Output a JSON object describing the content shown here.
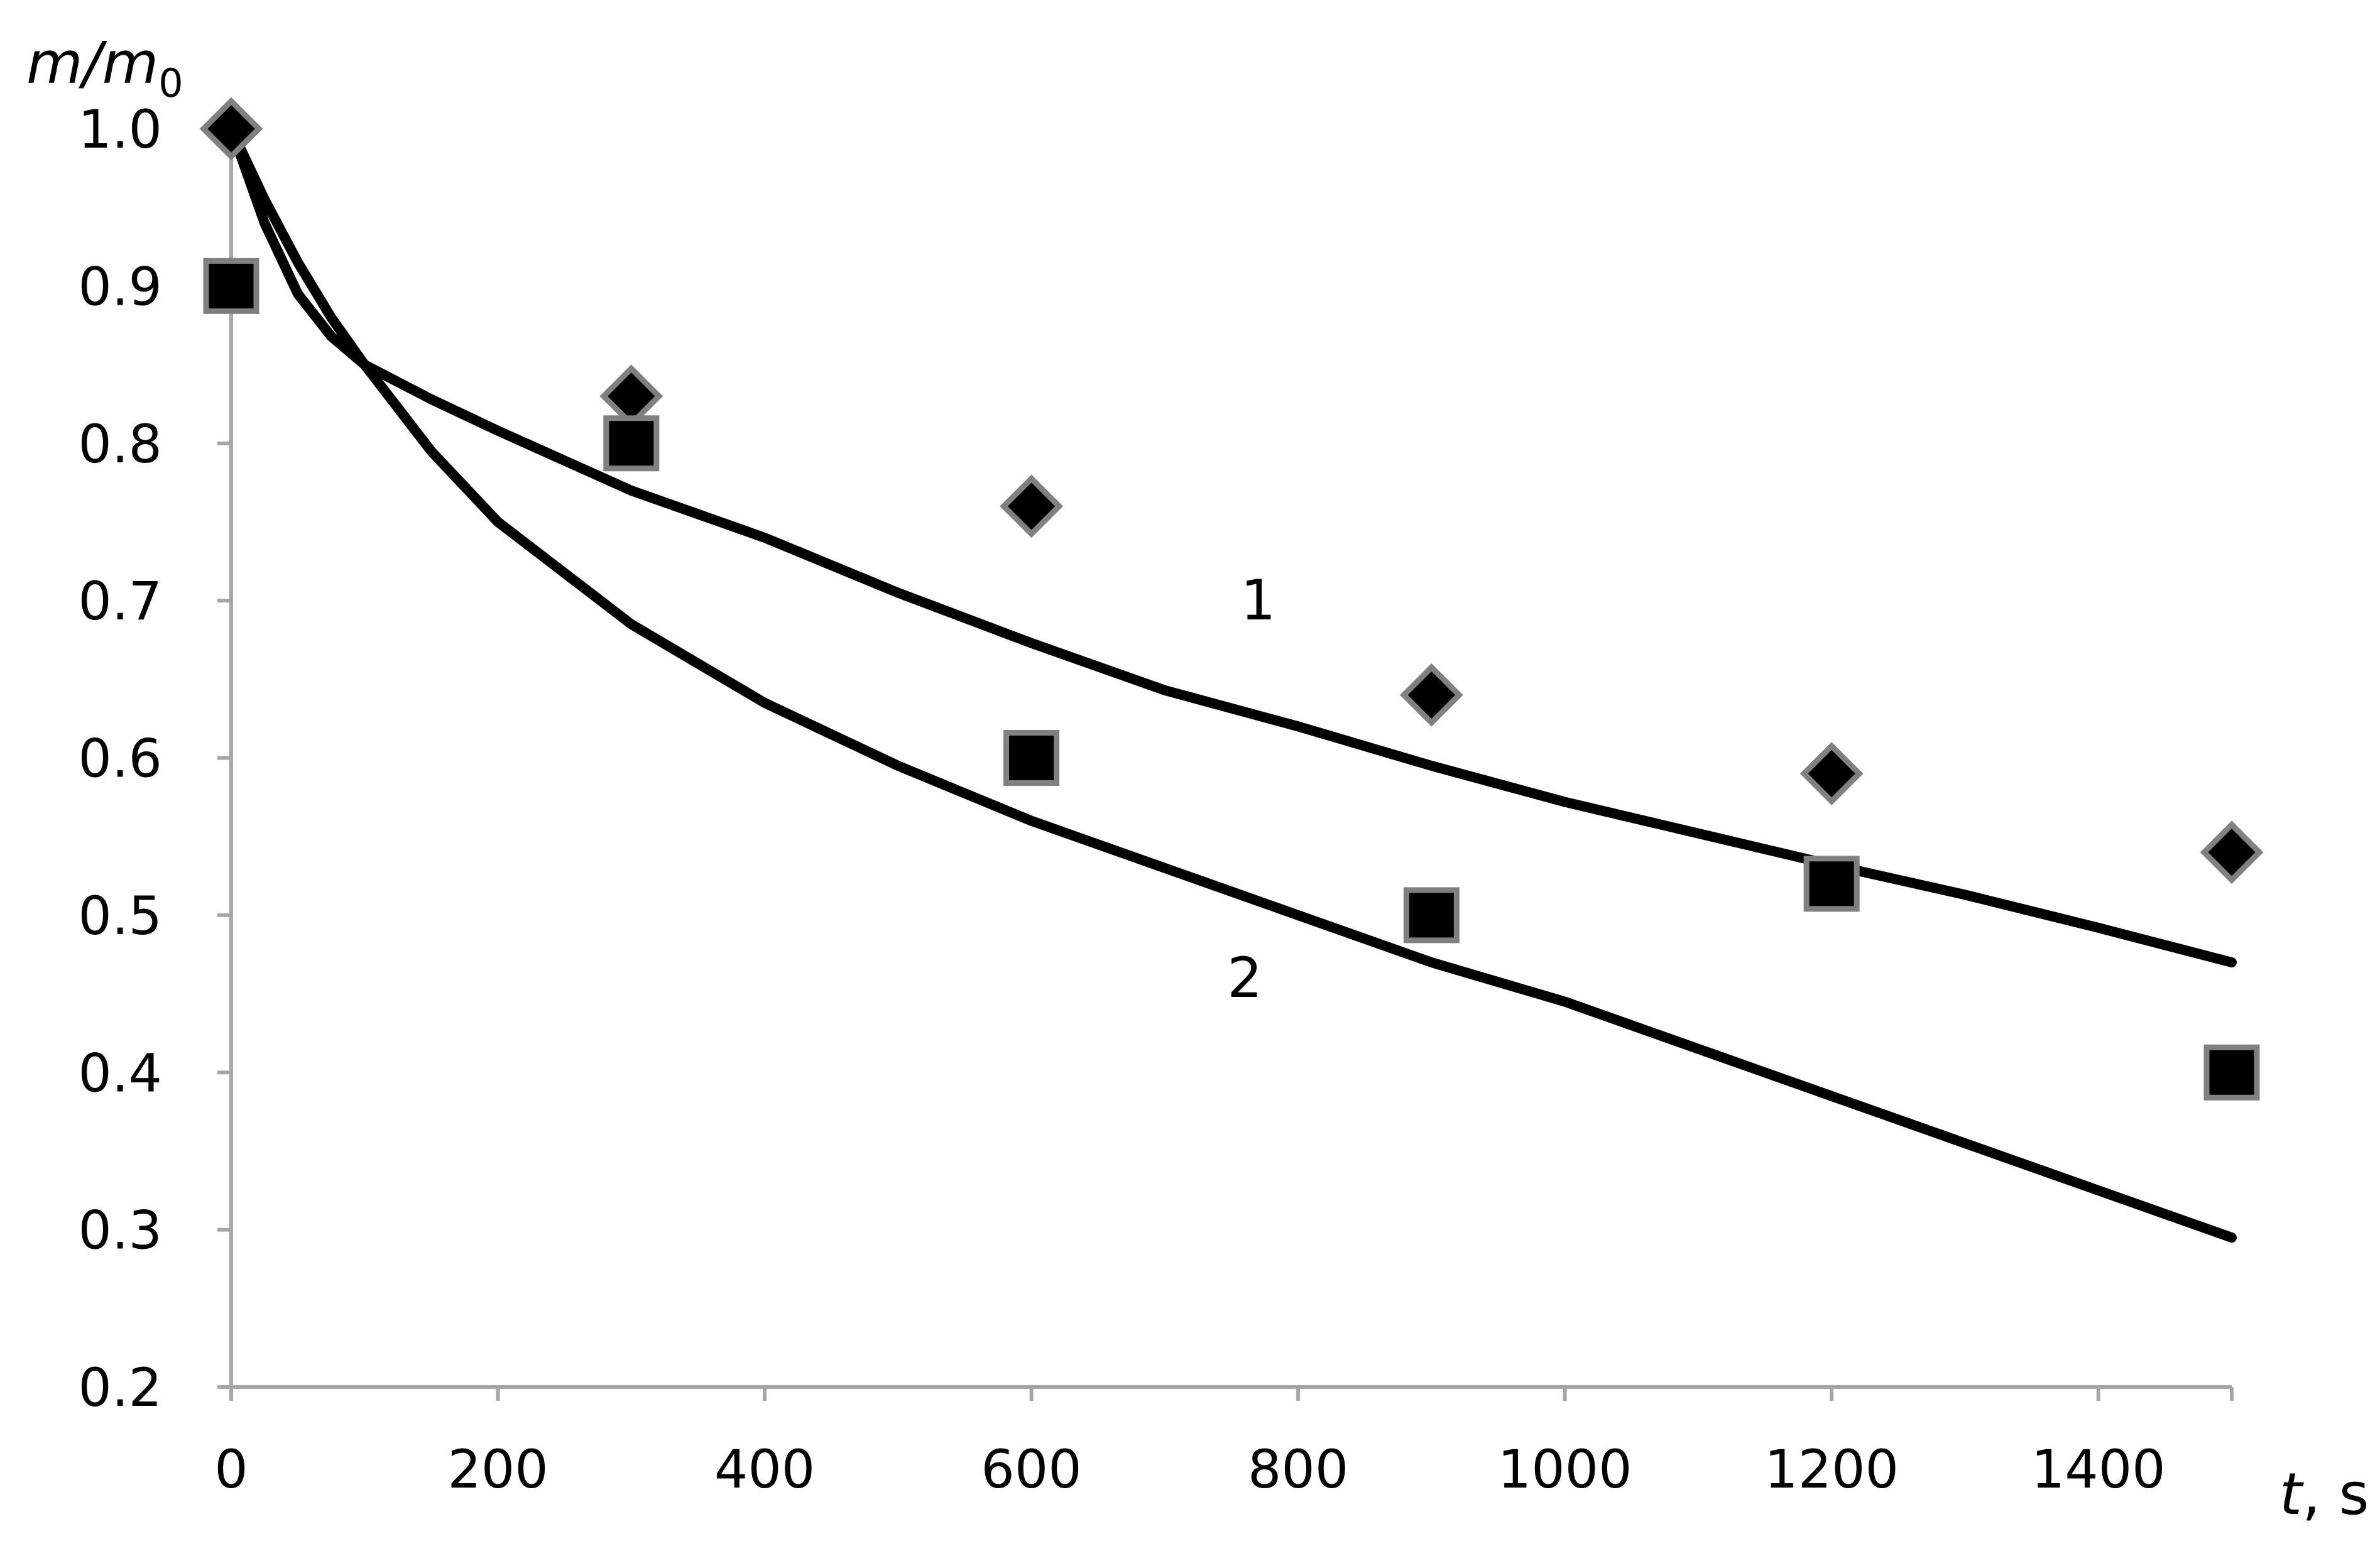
{
  "chart_data": {
    "type": "scatter",
    "title": "",
    "xlabel_main": "t",
    "xlabel_rest": ", s",
    "ylabel_main": "m/m",
    "ylabel_sub": "0",
    "xlim": [
      0,
      1500
    ],
    "ylim": [
      0.2,
      1.0
    ],
    "x_ticks": [
      0,
      200,
      400,
      600,
      800,
      1000,
      1200,
      1400
    ],
    "y_ticks": [
      0.2,
      0.3,
      0.4,
      0.5,
      0.6,
      0.7,
      0.8,
      0.9,
      1.0
    ],
    "y_tick_labels": [
      "0.2",
      "0.3",
      "0.4",
      "0.5",
      "0.6",
      "0.7",
      "0.8",
      "0.9",
      "1.0"
    ],
    "grid": false,
    "series": [
      {
        "marker": "diamond",
        "color": "#000000",
        "edge_color": "#808080",
        "points": [
          [
            0,
            1.0
          ],
          [
            300,
            0.83
          ],
          [
            600,
            0.76
          ],
          [
            900,
            0.64
          ],
          [
            1200,
            0.59
          ],
          [
            1500,
            0.54
          ]
        ]
      },
      {
        "marker": "square",
        "color": "#000000",
        "edge_color": "#808080",
        "points": [
          [
            0,
            0.9
          ],
          [
            300,
            0.8
          ],
          [
            600,
            0.6
          ],
          [
            900,
            0.5
          ],
          [
            1200,
            0.52
          ],
          [
            1500,
            0.4
          ]
        ]
      }
    ],
    "curves": [
      {
        "label": "1",
        "label_at": [
          770,
          0.7
        ],
        "points": [
          [
            0,
            1.0
          ],
          [
            25,
            0.94
          ],
          [
            50,
            0.895
          ],
          [
            75,
            0.868
          ],
          [
            100,
            0.85
          ],
          [
            150,
            0.828
          ],
          [
            200,
            0.808
          ],
          [
            300,
            0.77
          ],
          [
            400,
            0.74
          ],
          [
            500,
            0.705
          ],
          [
            600,
            0.673
          ],
          [
            700,
            0.643
          ],
          [
            800,
            0.62
          ],
          [
            900,
            0.595
          ],
          [
            1000,
            0.572
          ],
          [
            1100,
            0.552
          ],
          [
            1200,
            0.532
          ],
          [
            1300,
            0.513
          ],
          [
            1400,
            0.492
          ],
          [
            1500,
            0.47
          ]
        ]
      },
      {
        "label": "2",
        "label_at": [
          760,
          0.46
        ],
        "points": [
          [
            0,
            1.0
          ],
          [
            25,
            0.955
          ],
          [
            50,
            0.915
          ],
          [
            75,
            0.88
          ],
          [
            100,
            0.85
          ],
          [
            150,
            0.795
          ],
          [
            200,
            0.75
          ],
          [
            300,
            0.685
          ],
          [
            400,
            0.635
          ],
          [
            500,
            0.595
          ],
          [
            600,
            0.56
          ],
          [
            700,
            0.53
          ],
          [
            800,
            0.5
          ],
          [
            900,
            0.47
          ],
          [
            1000,
            0.445
          ],
          [
            1100,
            0.415
          ],
          [
            1200,
            0.385
          ],
          [
            1300,
            0.355
          ],
          [
            1400,
            0.325
          ],
          [
            1500,
            0.295
          ]
        ]
      }
    ]
  }
}
